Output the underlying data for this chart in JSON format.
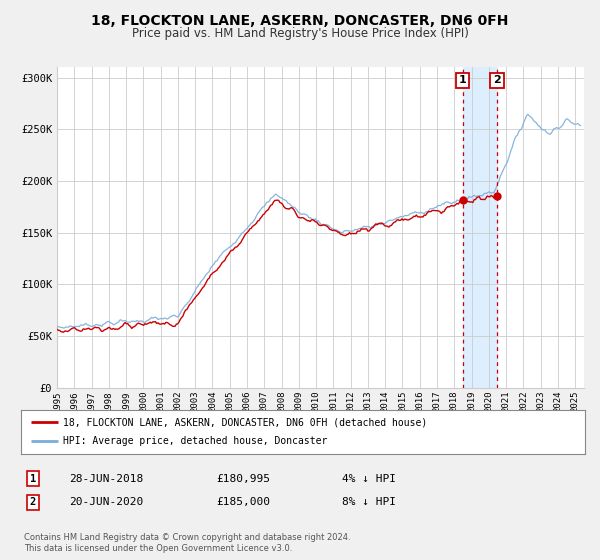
{
  "title": "18, FLOCKTON LANE, ASKERN, DONCASTER, DN6 0FH",
  "subtitle": "Price paid vs. HM Land Registry's House Price Index (HPI)",
  "legend_line1": "18, FLOCKTON LANE, ASKERN, DONCASTER, DN6 0FH (detached house)",
  "legend_line2": "HPI: Average price, detached house, Doncaster",
  "annotation1_date": "28-JUN-2018",
  "annotation1_price": "£180,995",
  "annotation1_hpi": "4% ↓ HPI",
  "annotation2_date": "20-JUN-2020",
  "annotation2_price": "£185,000",
  "annotation2_hpi": "8% ↓ HPI",
  "price_color": "#cc0000",
  "hpi_color": "#7aadda",
  "background_color": "#f0f0f0",
  "plot_bg_color": "#ffffff",
  "shade_color": "#ddeeff",
  "grid_color": "#cccccc",
  "footer": "Contains HM Land Registry data © Crown copyright and database right 2024.\nThis data is licensed under the Open Government Licence v3.0.",
  "ylim": [
    0,
    310000
  ],
  "yticks": [
    0,
    50000,
    100000,
    150000,
    200000,
    250000,
    300000
  ],
  "ytick_labels": [
    "£0",
    "£50K",
    "£100K",
    "£150K",
    "£200K",
    "£250K",
    "£300K"
  ],
  "marker1_x": 2018.49,
  "marker1_y": 180995,
  "marker2_x": 2020.47,
  "marker2_y": 185000,
  "vline1_x": 2018.49,
  "vline2_x": 2020.47,
  "xmin": 1995,
  "xmax": 2025.5
}
